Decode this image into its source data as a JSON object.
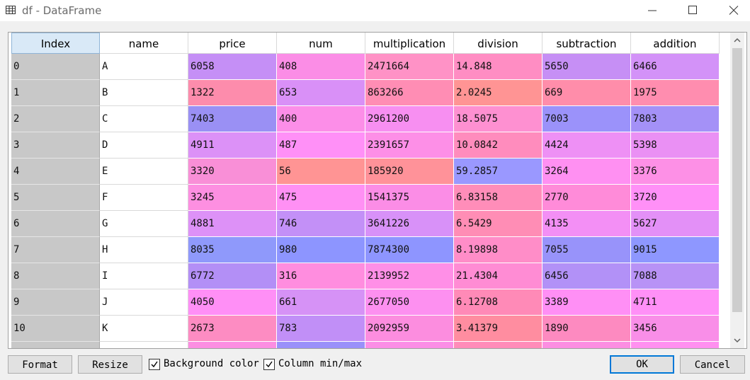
{
  "window": {
    "title": "df - DataFrame",
    "icons": {
      "app": "table-icon",
      "minimize": "minimize-icon",
      "maximize": "maximize-icon",
      "close": "close-icon"
    }
  },
  "table": {
    "columns": [
      "Index",
      "name",
      "price",
      "num",
      "multiplication",
      "division",
      "subtraction",
      "addition"
    ],
    "rows": [
      {
        "index": "0",
        "name": "A",
        "price": "6058",
        "num": "408",
        "multiplication": "2471664",
        "division": "14.848",
        "subtraction": "5650",
        "addition": "6466",
        "colors": [
          "#c58ff6",
          "#fb8de6",
          "#ff92c6",
          "#ff8dc3",
          "#c68ff5",
          "#d392f8"
        ]
      },
      {
        "index": "1",
        "name": "B",
        "price": "1322",
        "num": "653",
        "multiplication": "863266",
        "division": "2.0245",
        "subtraction": "669",
        "addition": "1975",
        "colors": [
          "#fd8cac",
          "#d990f7",
          "#ff8db4",
          "#ff9494",
          "#ff8daa",
          "#ff8daf"
        ]
      },
      {
        "index": "2",
        "name": "C",
        "price": "7403",
        "num": "400",
        "multiplication": "2961200",
        "division": "18.5075",
        "subtraction": "7003",
        "addition": "7803",
        "colors": [
          "#9a90f4",
          "#fc8ee8",
          "#f78ff1",
          "#fe90d1",
          "#9b92fa",
          "#a491f7"
        ]
      },
      {
        "index": "3",
        "name": "D",
        "price": "4911",
        "num": "487",
        "multiplication": "2391657",
        "division": "10.0842",
        "subtraction": "4424",
        "addition": "5398",
        "colors": [
          "#dc91f7",
          "#ff90f7",
          "#fd8fe7",
          "#ff8cbd",
          "#ee90f5",
          "#ea90f4"
        ]
      },
      {
        "index": "4",
        "name": "E",
        "price": "3320",
        "num": "56",
        "multiplication": "185920",
        "division": "59.2857",
        "subtraction": "3264",
        "addition": "3376",
        "colors": [
          "#f98fd7",
          "#ff9494",
          "#ff9299",
          "#9a98ff",
          "#ff90f2",
          "#fd90e6"
        ]
      },
      {
        "index": "5",
        "name": "F",
        "price": "3245",
        "num": "475",
        "multiplication": "1541375",
        "division": "6.83158",
        "subtraction": "2770",
        "addition": "3720",
        "colors": [
          "#fd8fe1",
          "#ff90f4",
          "#fb8de6",
          "#ff8db9",
          "#ff8bd9",
          "#ff90f7"
        ]
      },
      {
        "index": "6",
        "name": "G",
        "price": "4881",
        "num": "746",
        "multiplication": "3641226",
        "division": "6.5429",
        "subtraction": "4135",
        "addition": "5627",
        "colors": [
          "#dd91f7",
          "#c390f7",
          "#d891f8",
          "#ff8db5",
          "#f38ff5",
          "#e390f7"
        ]
      },
      {
        "index": "7",
        "name": "H",
        "price": "8035",
        "num": "980",
        "multiplication": "7874300",
        "division": "8.19898",
        "subtraction": "7055",
        "addition": "9015",
        "colors": [
          "#8f99fb",
          "#8d95ff",
          "#8e95ff",
          "#ff8dc8",
          "#9893fa",
          "#8e97ff"
        ]
      },
      {
        "index": "8",
        "name": "I",
        "price": "6772",
        "num": "316",
        "multiplication": "2139952",
        "division": "21.4304",
        "subtraction": "6456",
        "addition": "7088",
        "colors": [
          "#b38ff6",
          "#ff8ddf",
          "#ff8fe7",
          "#ff8cd4",
          "#b291f7",
          "#b892f6"
        ]
      },
      {
        "index": "9",
        "name": "J",
        "price": "4050",
        "num": "661",
        "multiplication": "2677050",
        "division": "6.12708",
        "subtraction": "3389",
        "addition": "4711",
        "colors": [
          "#ff8ff6",
          "#d692f6",
          "#fd90f0",
          "#ff8ab7",
          "#ff8ff5",
          "#ff90f7"
        ]
      },
      {
        "index": "10",
        "name": "K",
        "price": "2673",
        "num": "783",
        "multiplication": "2092959",
        "division": "3.41379",
        "subtraction": "1890",
        "addition": "3456",
        "colors": [
          "#fd8cc2",
          "#c18ff7",
          "#fc8ddf",
          "#ff8da0",
          "#fd8ac0",
          "#f98ee8"
        ]
      },
      {
        "index": "",
        "name": "",
        "price": "",
        "num": "",
        "multiplication": "",
        "division": "",
        "subtraction": "",
        "addition": "",
        "colors": [
          "#fc8ee2",
          "#9a90fa",
          "#fb8ee6",
          "#ff8cb9",
          "#fc8ee2",
          "#ff90f0"
        ]
      }
    ]
  },
  "controls": {
    "format_label": "Format",
    "resize_label": "Resize",
    "background_color_label": "Background color",
    "background_color_checked": true,
    "column_minmax_label": "Column min/max",
    "column_minmax_checked": true,
    "ok_label": "OK",
    "cancel_label": "Cancel"
  }
}
